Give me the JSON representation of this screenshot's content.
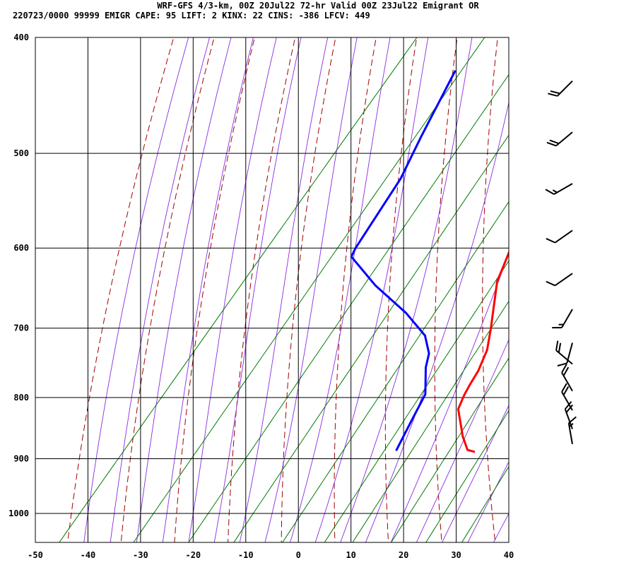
{
  "header": {
    "title": "WRF-GFS 4/3-km, 00Z 20Jul22 72-hr Valid 00Z 23Jul22 Emigrant OR",
    "stats": "220723/0000 99999  EMIGR   CAPE:    95 LIFT:     2 KINX:    22 CINS:  -386 LFCV:   449"
  },
  "chart_data": {
    "type": "line",
    "subtype": "skew-t log-p sounding",
    "title": "WRF-GFS 4/3-km, 00Z 20Jul22 72-hr Valid 00Z 23Jul22 Emigrant OR",
    "xlabel": "",
    "ylabel": "",
    "x_ticks": [
      -50,
      -40,
      -30,
      -20,
      -10,
      0,
      10,
      20,
      30,
      40
    ],
    "y_ticks": [
      400,
      500,
      600,
      700,
      800,
      900,
      1000
    ],
    "xlim": [
      -50,
      40
    ],
    "ylim": [
      1050,
      400
    ],
    "y_scale": "log",
    "grid": true,
    "background_lines": [
      "dry adiabats",
      "moist adiabats",
      "mixing ratio lines"
    ],
    "series": [
      {
        "name": "",
        "color": "#ff0000",
        "points": [
          {
            "t": 24,
            "p": 888
          },
          {
            "t": 22.5,
            "p": 885
          },
          {
            "t": 19.5,
            "p": 862
          },
          {
            "t": 14.5,
            "p": 818
          },
          {
            "t": 13.5,
            "p": 796
          },
          {
            "t": 13,
            "p": 780
          },
          {
            "t": 12.5,
            "p": 760
          },
          {
            "t": 11,
            "p": 730
          },
          {
            "t": 8.5,
            "p": 701
          },
          {
            "t": 2.5,
            "p": 640
          },
          {
            "t": 0,
            "p": 600
          },
          {
            "t": -2,
            "p": 571
          },
          {
            "t": -6.5,
            "p": 530
          },
          {
            "t": -10,
            "p": 500
          },
          {
            "t": -12,
            "p": 475
          },
          {
            "t": -20,
            "p": 427
          }
        ]
      },
      {
        "name": "",
        "color": "#0000ff",
        "points": [
          {
            "t": 9,
            "p": 885
          },
          {
            "t": 8.5,
            "p": 870
          },
          {
            "t": 7.5,
            "p": 840
          },
          {
            "t": 6,
            "p": 795
          },
          {
            "t": 2,
            "p": 755
          },
          {
            "t": 0.5,
            "p": 735
          },
          {
            "t": -3,
            "p": 710
          },
          {
            "t": -10,
            "p": 680
          },
          {
            "t": -20,
            "p": 645
          },
          {
            "t": -29,
            "p": 610
          },
          {
            "t": -29.5,
            "p": 600
          },
          {
            "t": -31.5,
            "p": 525
          },
          {
            "t": -34,
            "p": 484
          },
          {
            "t": -37.5,
            "p": 427
          }
        ]
      }
    ],
    "wind_barbs": [
      {
        "p": 435,
        "dir": 225,
        "kt": 20
      },
      {
        "p": 480,
        "dir": 230,
        "kt": 20
      },
      {
        "p": 530,
        "dir": 240,
        "kt": 15
      },
      {
        "p": 580,
        "dir": 235,
        "kt": 10
      },
      {
        "p": 630,
        "dir": 235,
        "kt": 10
      },
      {
        "p": 675,
        "dir": 210,
        "kt": 15
      },
      {
        "p": 720,
        "dir": 195,
        "kt": 10
      },
      {
        "p": 750,
        "dir": 310,
        "kt": 20
      },
      {
        "p": 790,
        "dir": 330,
        "kt": 20
      },
      {
        "p": 820,
        "dir": 330,
        "kt": 20
      },
      {
        "p": 850,
        "dir": 340,
        "kt": 20
      },
      {
        "p": 875,
        "dir": 350,
        "kt": 15
      }
    ]
  }
}
